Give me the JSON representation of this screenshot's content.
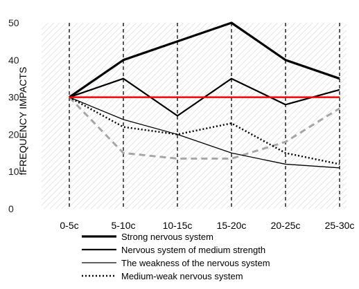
{
  "chart_data": {
    "type": "line",
    "title": "",
    "xlabel": "",
    "ylabel": "fFREQUENCY IMPACTS",
    "ylim": [
      0,
      50
    ],
    "yticks": [
      0,
      10,
      20,
      30,
      40,
      50
    ],
    "categories": [
      "0-5c",
      "5-10c",
      "10-15c",
      "15-20c",
      "20-25c",
      "25-30c"
    ],
    "grid": "vertical dashed lines at each category; hatched plot background",
    "legend_position": "bottom",
    "series": [
      {
        "name": "Strong nervous system",
        "values": [
          30,
          40,
          45,
          50,
          40,
          35
        ],
        "color": "#000000",
        "style": "solid-thick",
        "in_legend": true
      },
      {
        "name": "Nervous system of medium strength",
        "values": [
          30,
          35,
          25,
          35,
          28,
          32
        ],
        "color": "#000000",
        "style": "solid-medium",
        "in_legend": true
      },
      {
        "name": "The weakness of the nervous system",
        "values": [
          30,
          24,
          20,
          15,
          12,
          11
        ],
        "color": "#000000",
        "style": "solid-thin",
        "in_legend": true
      },
      {
        "name": "Medium-weak nervous system",
        "values": [
          30,
          22,
          20,
          23,
          15,
          12
        ],
        "color": "#000000",
        "style": "dotted",
        "in_legend": true
      },
      {
        "values": [
          30,
          15,
          13.5,
          13.5,
          18,
          27
        ],
        "color": "#a6a6a6",
        "style": "dashed-grey",
        "in_legend": false
      },
      {
        "values": [
          30,
          30,
          30,
          30,
          30,
          30
        ],
        "color": "#ff0000",
        "style": "solid-red",
        "in_legend": false
      }
    ]
  }
}
